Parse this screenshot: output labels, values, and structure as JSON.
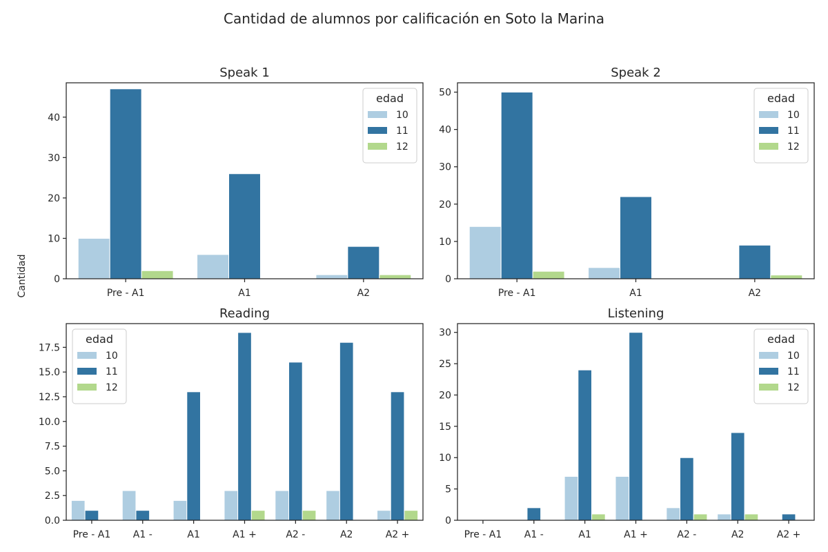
{
  "figure": {
    "title": "Cantidad de alumnos por calificación en Soto la Marina",
    "ylabel": "Cantidad"
  },
  "colors": {
    "10": "#aecde1",
    "11": "#3274a1",
    "12": "#b2d88c"
  },
  "chart_data": [
    {
      "type": "bar",
      "title": "Speak 1",
      "categories": [
        "Pre - A1",
        "A1",
        "A2"
      ],
      "legend": {
        "title": "edad",
        "position": "upper right"
      },
      "series": [
        {
          "name": "10",
          "values": [
            10,
            6,
            1
          ]
        },
        {
          "name": "11",
          "values": [
            47,
            26,
            8
          ]
        },
        {
          "name": "12",
          "values": [
            2,
            0,
            1
          ]
        }
      ],
      "ylim": [
        0,
        48.5
      ],
      "yticks": [
        0,
        10,
        20,
        30,
        40
      ],
      "ytick_labels": [
        "0",
        "10",
        "20",
        "30",
        "40"
      ]
    },
    {
      "type": "bar",
      "title": "Speak 2",
      "categories": [
        "Pre - A1",
        "A1",
        "A2"
      ],
      "legend": {
        "title": "edad",
        "position": "upper right"
      },
      "series": [
        {
          "name": "10",
          "values": [
            14,
            3,
            0
          ]
        },
        {
          "name": "11",
          "values": [
            50,
            22,
            9
          ]
        },
        {
          "name": "12",
          "values": [
            2,
            0,
            1
          ]
        }
      ],
      "ylim": [
        0,
        52.5
      ],
      "yticks": [
        0,
        10,
        20,
        30,
        40,
        50
      ],
      "ytick_labels": [
        "0",
        "10",
        "20",
        "30",
        "40",
        "50"
      ]
    },
    {
      "type": "bar",
      "title": "Reading",
      "categories": [
        "Pre - A1",
        "A1 -",
        "A1",
        "A1 +",
        "A2 -",
        "A2",
        "A2 +"
      ],
      "legend": {
        "title": "edad",
        "position": "upper left"
      },
      "series": [
        {
          "name": "10",
          "values": [
            2,
            3,
            2,
            3,
            3,
            3,
            1
          ]
        },
        {
          "name": "11",
          "values": [
            1,
            1,
            13,
            19,
            16,
            18,
            13
          ]
        },
        {
          "name": "12",
          "values": [
            0,
            0,
            0,
            1,
            1,
            0,
            1
          ]
        }
      ],
      "ylim": [
        0,
        19.9
      ],
      "yticks": [
        0,
        2.5,
        5,
        7.5,
        10,
        12.5,
        15,
        17.5
      ],
      "ytick_labels": [
        "0.0",
        "2.5",
        "5.0",
        "7.5",
        "10.0",
        "12.5",
        "15.0",
        "17.5"
      ]
    },
    {
      "type": "bar",
      "title": "Listening",
      "categories": [
        "Pre - A1",
        "A1 -",
        "A1",
        "A1 +",
        "A2 -",
        "A2",
        "A2 +"
      ],
      "legend": {
        "title": "edad",
        "position": "upper right"
      },
      "series": [
        {
          "name": "10",
          "values": [
            0,
            0,
            7,
            7,
            2,
            1,
            0
          ]
        },
        {
          "name": "11",
          "values": [
            0,
            2,
            24,
            30,
            10,
            14,
            1
          ]
        },
        {
          "name": "12",
          "values": [
            0,
            0,
            1,
            0,
            1,
            1,
            0
          ]
        }
      ],
      "ylim": [
        0,
        31.4
      ],
      "yticks": [
        0,
        5,
        10,
        15,
        20,
        25,
        30
      ],
      "ytick_labels": [
        "0",
        "5",
        "10",
        "15",
        "20",
        "25",
        "30"
      ]
    }
  ]
}
